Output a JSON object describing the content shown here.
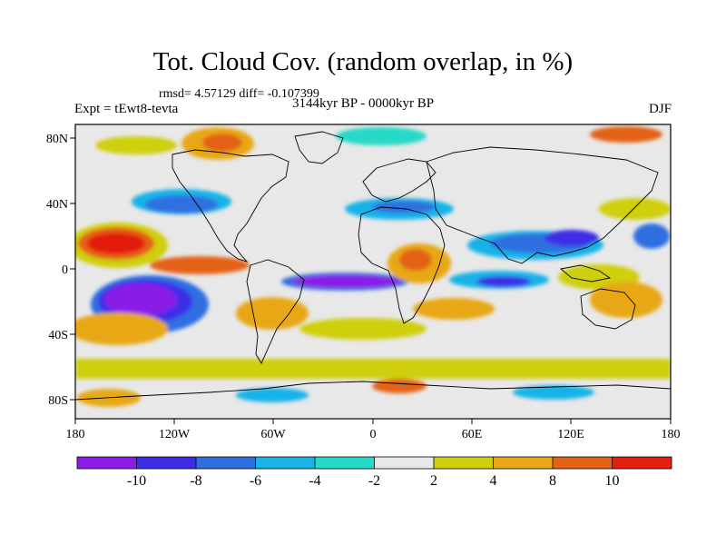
{
  "figure": {
    "title": "Tot. Cloud Cov. (random overlap, in %)",
    "stats": "rmsd= 4.57129 diff= -0.107399",
    "left_label": "Expt = tEwt8-tevta",
    "center_label": "3144kyr BP - 0000kyr BP",
    "right_label": "DJF"
  },
  "map": {
    "projection": "cylindrical-equidistant",
    "x_ticks": [
      "180",
      "120W",
      "60W",
      "0",
      "60E",
      "120E",
      "180"
    ],
    "y_ticks": [
      "80N",
      "40N",
      "0",
      "40S",
      "80S"
    ],
    "background_class": "-2 to 2"
  },
  "colorbar": {
    "labels": [
      "-10",
      "-8",
      "-6",
      "-4",
      "-2",
      "2",
      "4",
      "8",
      "10"
    ],
    "colors": [
      "#8a1ee8",
      "#3d2ee6",
      "#2f6fe0",
      "#19b3e8",
      "#27d9c8",
      "#e8e8e8",
      "#cfcf10",
      "#e8a818",
      "#e46214",
      "#e41e10"
    ]
  }
}
